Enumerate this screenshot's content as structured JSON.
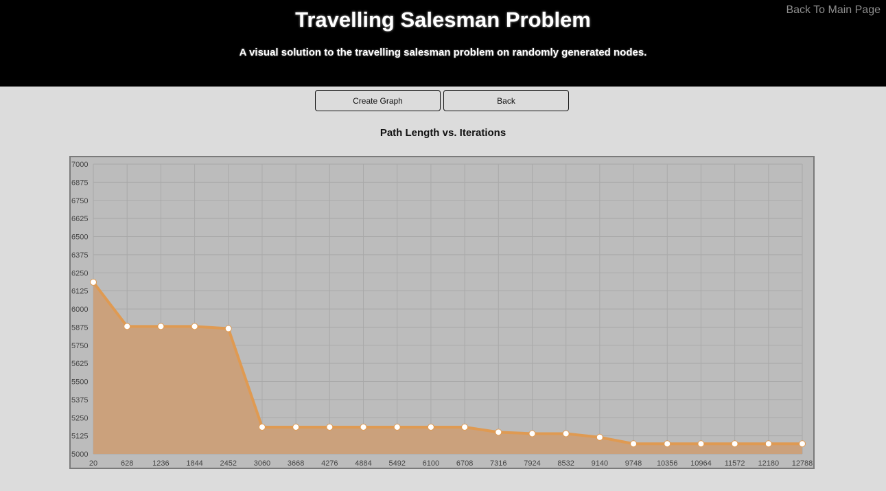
{
  "header": {
    "title": "Travelling Salesman Problem",
    "subtitle": "A visual solution to the travelling salesman problem on randomly generated nodes.",
    "main_link": "Back To Main Page"
  },
  "controls": {
    "create_label": "Create Graph",
    "back_label": "Back"
  },
  "colors": {
    "line": "#df9a52",
    "fill": "#cba17c",
    "plot_bg": "#bcbcbc",
    "point": "#ffffff"
  },
  "chart_data": {
    "type": "area",
    "title": "Path Length vs. Iterations",
    "xlabel": "",
    "ylabel": "",
    "grid": true,
    "legend": false,
    "ylim": [
      5000,
      7000
    ],
    "yticks": [
      5000,
      5125,
      5250,
      5375,
      5500,
      5625,
      5750,
      5875,
      6000,
      6125,
      6250,
      6375,
      6500,
      6625,
      6750,
      6875,
      7000
    ],
    "categories": [
      "20",
      "628",
      "1236",
      "1844",
      "2452",
      "3060",
      "3668",
      "4276",
      "4884",
      "5492",
      "6100",
      "6708",
      "7316",
      "7924",
      "8532",
      "9140",
      "9748",
      "10356",
      "10964",
      "11572",
      "12180",
      "12788"
    ],
    "values": [
      6185,
      5880,
      5880,
      5880,
      5865,
      5185,
      5185,
      5185,
      5185,
      5185,
      5185,
      5185,
      5150,
      5140,
      5140,
      5115,
      5070,
      5070,
      5070,
      5070,
      5070,
      5070
    ]
  }
}
